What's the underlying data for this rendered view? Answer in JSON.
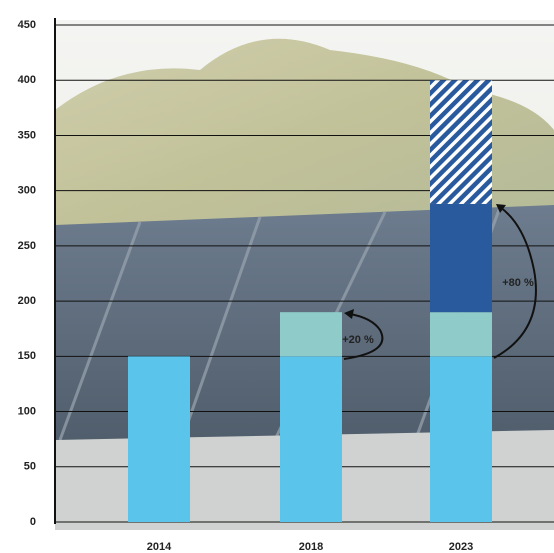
{
  "chart_data": {
    "type": "bar",
    "stacked": true,
    "categories": [
      "2014",
      "2018",
      "2023"
    ],
    "series": [
      {
        "color": "#5bc4ea",
        "values": [
          150,
          150,
          150
        ]
      },
      {
        "color": "#8ecbc9",
        "values": [
          null,
          40,
          40
        ]
      },
      {
        "color": "#2a5a9e",
        "values": [
          null,
          null,
          98
        ]
      },
      {
        "color": "#2a5a9e",
        "pattern": "hatch",
        "values": [
          null,
          null,
          112
        ]
      }
    ],
    "annotations": [
      "+20 %",
      "+80 %"
    ],
    "ylim": [
      0,
      450
    ],
    "yticks": [
      0,
      50,
      100,
      150,
      200,
      250,
      300,
      350,
      400,
      450
    ],
    "grid": true
  }
}
